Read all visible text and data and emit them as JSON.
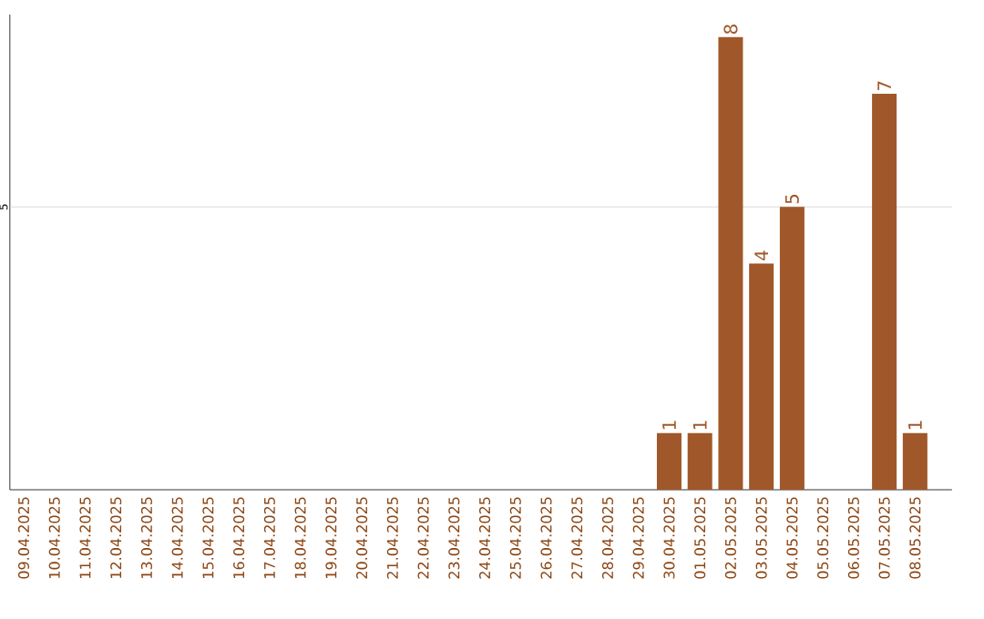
{
  "chart_data": {
    "type": "bar",
    "ylim": [
      0,
      8.4
    ],
    "categories": [
      "09.04.2025",
      "10.04.2025",
      "11.04.2025",
      "12.04.2025",
      "13.04.2025",
      "14.04.2025",
      "15.04.2025",
      "16.04.2025",
      "17.04.2025",
      "18.04.2025",
      "19.04.2025",
      "20.04.2025",
      "21.04.2025",
      "22.04.2025",
      "23.04.2025",
      "24.04.2025",
      "25.04.2025",
      "26.04.2025",
      "27.04.2025",
      "28.04.2025",
      "29.04.2025",
      "30.04.2025",
      "01.05.2025",
      "02.05.2025",
      "03.05.2025",
      "04.05.2025",
      "05.05.2025",
      "06.05.2025",
      "07.05.2025",
      "08.05.2025"
    ],
    "values": [
      null,
      null,
      null,
      null,
      null,
      null,
      null,
      null,
      null,
      null,
      null,
      null,
      null,
      null,
      null,
      null,
      null,
      null,
      null,
      null,
      null,
      1,
      1,
      8,
      4,
      5,
      null,
      null,
      7,
      1
    ],
    "value_labels": [
      null,
      null,
      null,
      null,
      null,
      null,
      null,
      null,
      null,
      null,
      null,
      null,
      null,
      null,
      null,
      null,
      null,
      null,
      null,
      null,
      null,
      "1",
      "1",
      "8",
      "4",
      "5",
      null,
      null,
      "7",
      "1"
    ],
    "color": "#a0582a",
    "ref_lines": [
      {
        "axis": "y",
        "value": 5,
        "label": "5",
        "color": "#d3d3d3"
      }
    ]
  }
}
